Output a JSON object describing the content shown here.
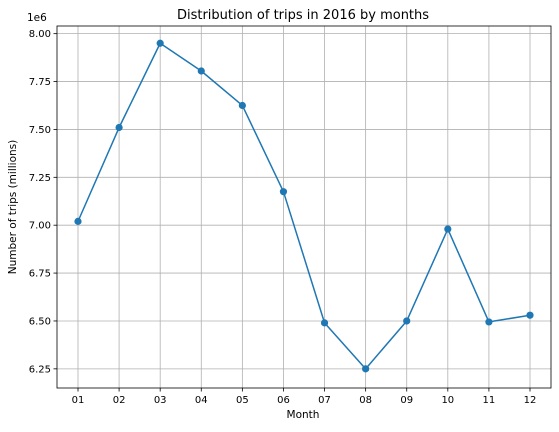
{
  "chart_data": {
    "type": "line",
    "title": "Distribution of trips in 2016 by months",
    "xlabel": "Month",
    "ylabel": "Number of trips (millions)",
    "offset_text": "1e6",
    "categories": [
      "01",
      "02",
      "03",
      "04",
      "05",
      "06",
      "07",
      "08",
      "09",
      "10",
      "11",
      "12"
    ],
    "series": [
      {
        "values": [
          7020000,
          7510000,
          7950000,
          7805000,
          7625000,
          7175000,
          6490000,
          6250000,
          6500000,
          6980000,
          6495000,
          6530000
        ]
      }
    ],
    "ylim": [
      6150000,
      8040000
    ],
    "yticks": [
      6250000,
      6500000,
      6750000,
      7000000,
      7250000,
      7500000,
      7750000,
      8000000
    ],
    "ytick_labels": [
      "6.25",
      "6.50",
      "6.75",
      "7.00",
      "7.25",
      "7.50",
      "7.75",
      "8.00"
    ],
    "grid": true,
    "markers": true,
    "line_color": "#1f77b4",
    "grid_color": "#b0b0b0"
  }
}
